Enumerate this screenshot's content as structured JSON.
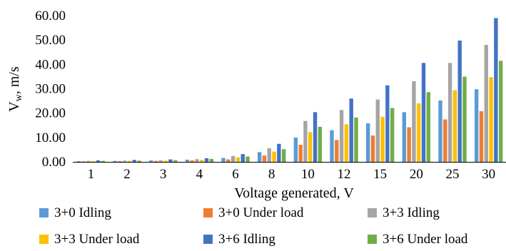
{
  "chart_data": {
    "type": "bar",
    "xlabel": "Voltage generated, V",
    "ylabel_main": "V",
    "ylabel_sub": "w",
    "ylabel_rest": ", m/s",
    "categories": [
      "1",
      "2",
      "3",
      "4",
      "6",
      "8",
      "10",
      "12",
      "15",
      "20",
      "25",
      "30"
    ],
    "ylim": [
      0,
      60
    ],
    "y_ticks": [
      "0.00",
      "10.00",
      "20.00",
      "30.00",
      "40.00",
      "50.00",
      "60.00"
    ],
    "grid": false,
    "legend_position": "bottom",
    "series": [
      {
        "name": "3+0 Idling",
        "color": "#5B9BD5",
        "values": [
          0.3,
          0.4,
          0.6,
          0.9,
          1.6,
          4.0,
          10.0,
          13.0,
          15.8,
          20.4,
          25.2,
          29.8
        ]
      },
      {
        "name": "3+0 Under load",
        "color": "#ED7D31",
        "values": [
          0.2,
          0.3,
          0.4,
          0.6,
          1.0,
          2.6,
          7.0,
          9.0,
          10.8,
          14.2,
          17.4,
          20.8
        ]
      },
      {
        "name": "3+3 Idling",
        "color": "#A5A5A5",
        "values": [
          0.4,
          0.5,
          0.6,
          1.1,
          2.4,
          5.6,
          16.8,
          21.3,
          25.6,
          33.1,
          40.6,
          48.0
        ]
      },
      {
        "name": "3+3 Under load",
        "color": "#FFC000",
        "values": [
          0.3,
          0.4,
          0.5,
          0.8,
          1.8,
          4.2,
          12.2,
          15.4,
          18.5,
          24.0,
          29.4,
          34.8
        ]
      },
      {
        "name": "3+6 Idling",
        "color": "#4472C4",
        "values": [
          0.6,
          0.8,
          1.0,
          1.5,
          3.2,
          7.4,
          20.4,
          26.0,
          31.4,
          40.6,
          49.8,
          59.0
        ]
      },
      {
        "name": "3+6 Under load",
        "color": "#70AD47",
        "values": [
          0.4,
          0.5,
          0.7,
          1.2,
          2.2,
          5.2,
          14.4,
          18.2,
          22.1,
          28.6,
          35.0,
          41.5
        ]
      }
    ]
  }
}
